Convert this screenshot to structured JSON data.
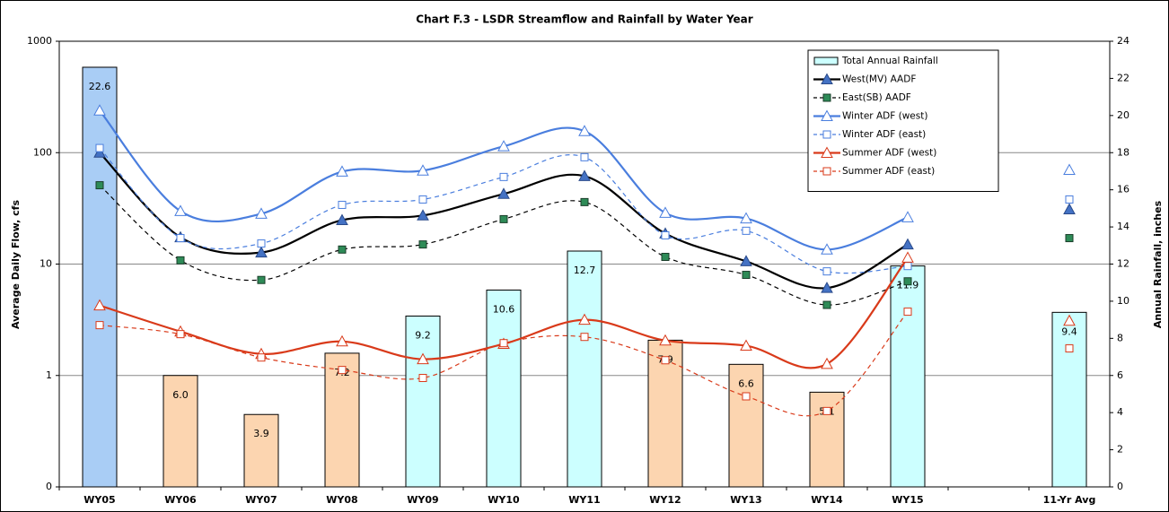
{
  "chart_data": {
    "type": "combo",
    "title": "Chart F.3 - LSDR Streamflow and Rainfall by Water Year",
    "y_label": "Average Daily Flow, cfs",
    "y2_label": "Annual Rainfall, inches",
    "categories": [
      "WY05",
      "WY06",
      "WY07",
      "WY08",
      "WY09",
      "WY10",
      "WY11",
      "WY12",
      "WY13",
      "WY14",
      "WY15",
      null,
      "11-Yr Avg"
    ],
    "ylog": true,
    "ylim": [
      0.1,
      1000
    ],
    "yticks": [
      {
        "value": 0.1,
        "label": "0"
      },
      1,
      10,
      100,
      1000
    ],
    "y2lim": [
      0,
      24
    ],
    "y2ticks": [
      0,
      2,
      4,
      6,
      8,
      10,
      12,
      14,
      16,
      18,
      20,
      22,
      24
    ],
    "grid": true,
    "legend": "top-right",
    "series": [
      {
        "name": "Total Annual Rainfall",
        "type": "bar",
        "axis": "y2",
        "color": "#ccffff",
        "colors": [
          "#a9cdf5",
          "#fcd5b0",
          "#fcd5b0",
          "#fcd5b0",
          "#ccffff",
          "#ccffff",
          "#ccffff",
          "#fcd5b0",
          "#fcd5b0",
          "#fcd5b0",
          "#ccffff",
          null,
          "#ccffff"
        ],
        "values": [
          22.6,
          6.0,
          3.9,
          7.2,
          9.2,
          10.6,
          12.7,
          7.9,
          6.6,
          5.1,
          11.9,
          null,
          9.4
        ],
        "value_labels": [
          "22.6",
          "6.0",
          "3.9",
          "7.2",
          "9.2",
          "10.6",
          "12.7",
          "7.9",
          "6.6",
          "5.1",
          "11.9",
          null,
          "9.4"
        ]
      },
      {
        "name": "West(MV) AADF",
        "type": "line",
        "color": "#000000",
        "dash": false,
        "marker": "triangle",
        "marker_color": "#4472c4",
        "marker_filled": true,
        "values": [
          100,
          17.4,
          12.7,
          24.8,
          27.3,
          42.6,
          61.6,
          18.8,
          10.6,
          6.1,
          15.0,
          null,
          31
        ]
      },
      {
        "name": "East(SB) AADF",
        "type": "line",
        "color": "#000000",
        "dash": true,
        "marker": "square",
        "marker_color": "#2e8b57",
        "marker_filled": true,
        "values": [
          51,
          10.8,
          7.2,
          13.5,
          15,
          25.3,
          36,
          11.6,
          8.0,
          4.3,
          7.0,
          null,
          17.1
        ]
      },
      {
        "name": "Winter ADF (west)",
        "type": "line",
        "color": "#4a7ede",
        "dash": false,
        "marker": "triangle",
        "marker_color": "#4a7ede",
        "marker_filled": false,
        "values": [
          239,
          29.9,
          28.3,
          67.6,
          69,
          114,
          156,
          28.8,
          25.7,
          13.5,
          26.3,
          null,
          70
        ]
      },
      {
        "name": "Winter ADF (east)",
        "type": "line",
        "color": "#4a7ede",
        "dash": true,
        "marker": "square",
        "marker_color": "#4a7ede",
        "marker_filled": false,
        "values": [
          110,
          17.1,
          15.3,
          34,
          38,
          60.5,
          91,
          18.1,
          19.9,
          8.6,
          9.6,
          null,
          38
        ]
      },
      {
        "name": "Summer ADF (west)",
        "type": "line",
        "color": "#d93a1a",
        "dash": false,
        "marker": "triangle",
        "marker_color": "#d93a1a",
        "marker_filled": false,
        "values": [
          4.25,
          2.48,
          1.56,
          2.02,
          1.4,
          1.92,
          3.16,
          2.06,
          1.85,
          1.27,
          11.4,
          null,
          3.1
        ]
      },
      {
        "name": "Summer ADF (east)",
        "type": "line",
        "color": "#d93a1a",
        "dash": true,
        "marker": "square",
        "marker_color": "#d93a1a",
        "marker_filled": false,
        "values": [
          2.83,
          2.35,
          1.45,
          1.12,
          0.95,
          1.95,
          2.22,
          1.37,
          0.65,
          0.48,
          3.74,
          null,
          1.75
        ]
      }
    ]
  }
}
